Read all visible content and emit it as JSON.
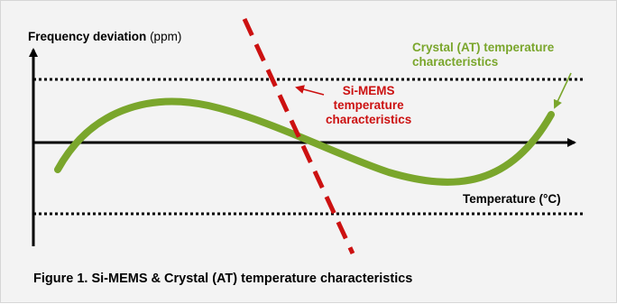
{
  "diagram": {
    "y_axis_title": "Frequency deviation",
    "y_axis_unit": "(ppm)",
    "x_axis_title": "Temperature (°C)",
    "crystal_label": {
      "line1": "Crystal (AT) temperature",
      "line2": "characteristics",
      "color": "#7aa62c"
    },
    "mems_label": {
      "line1": "Si-MEMS",
      "line2": "temperature",
      "line3": "characteristics",
      "color": "#cc1111"
    },
    "caption": "Figure 1. Si-MEMS & Crystal (AT) temperature characteristics",
    "colors": {
      "background": "#f3f3f3",
      "axis": "#000000",
      "crystal_curve": "#7aa62c",
      "mems_line": "#cc1111"
    }
  }
}
